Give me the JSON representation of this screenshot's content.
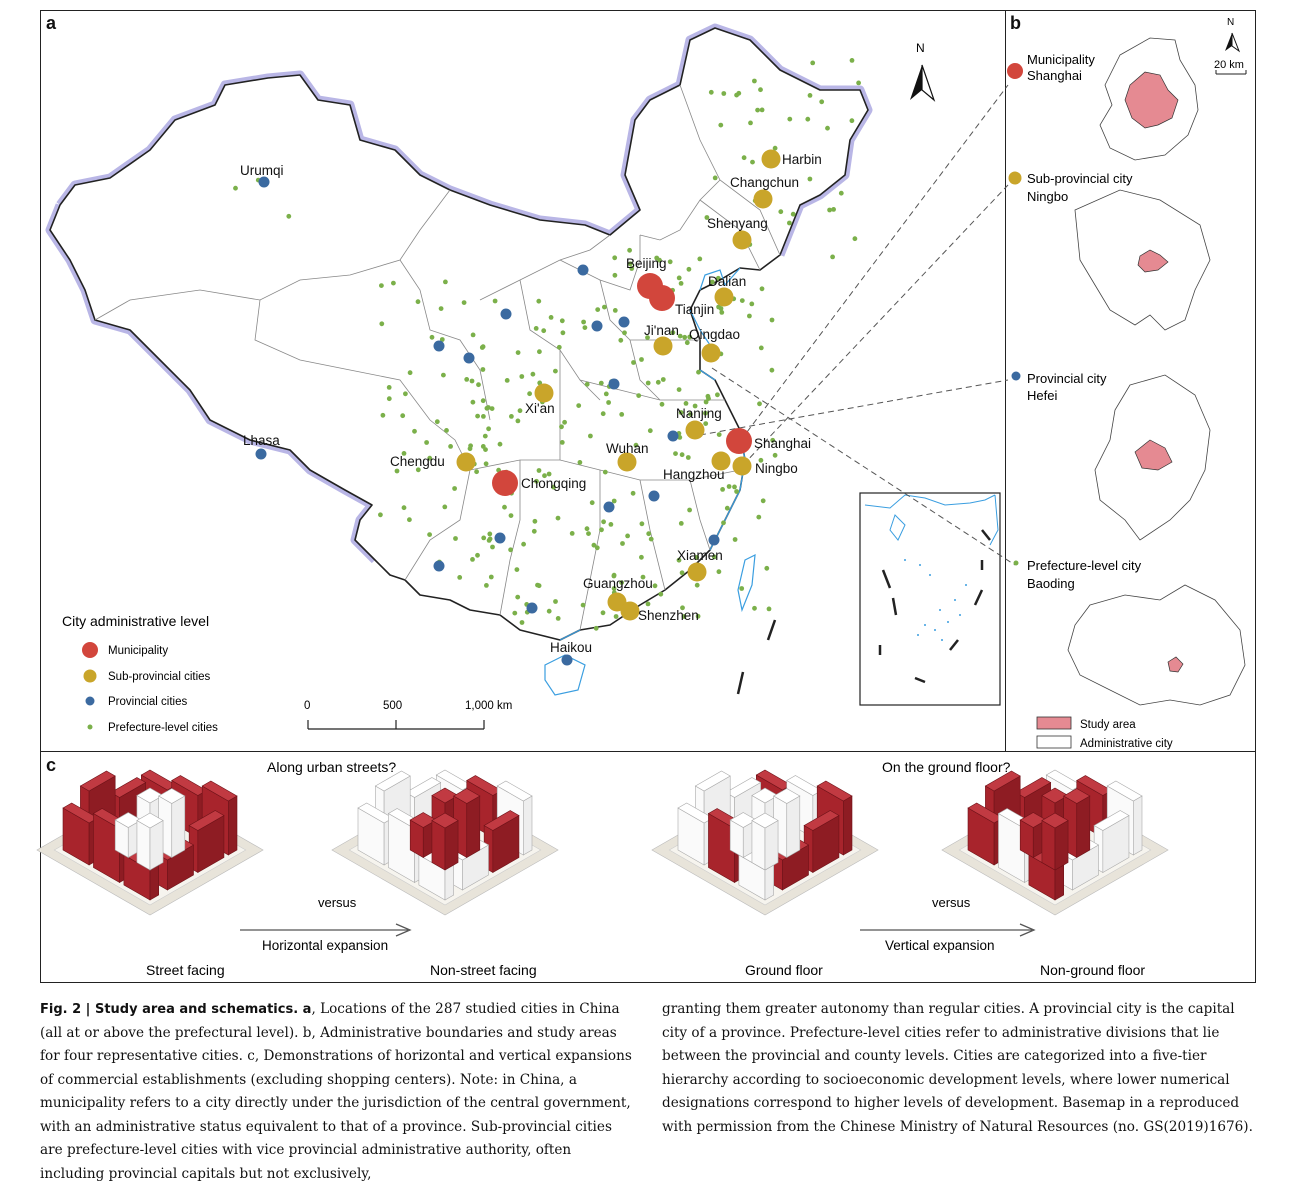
{
  "panels": {
    "a": "a",
    "b": "b",
    "c": "c"
  },
  "map_a": {
    "north": "N",
    "legend_title": "City administrative level",
    "legend_items": [
      {
        "label": "Municipality",
        "color": "#d2463c"
      },
      {
        "label": "Sub-provincial cities",
        "color": "#c9a52a"
      },
      {
        "label": "Provincial cities",
        "color": "#3b6aa0"
      },
      {
        "label": "Prefecture-level cities",
        "color": "#7bb04a"
      }
    ],
    "scale_ticks": [
      "0",
      "500",
      "1,000 km"
    ],
    "cities": [
      {
        "name": "Urumqi",
        "level": "provincial"
      },
      {
        "name": "Lhasa",
        "level": "provincial"
      },
      {
        "name": "Harbin",
        "level": "sub-provincial"
      },
      {
        "name": "Changchun",
        "level": "sub-provincial"
      },
      {
        "name": "Shenyang",
        "level": "sub-provincial"
      },
      {
        "name": "Beijing",
        "level": "municipality"
      },
      {
        "name": "Tianjin",
        "level": "municipality"
      },
      {
        "name": "Dalian",
        "level": "sub-provincial"
      },
      {
        "name": "Ji'nan",
        "level": "sub-provincial"
      },
      {
        "name": "Qingdao",
        "level": "sub-provincial"
      },
      {
        "name": "Xi'an",
        "level": "sub-provincial"
      },
      {
        "name": "Nanjing",
        "level": "sub-provincial"
      },
      {
        "name": "Shanghai",
        "level": "municipality"
      },
      {
        "name": "Chengdu",
        "level": "sub-provincial"
      },
      {
        "name": "Wuhan",
        "level": "sub-provincial"
      },
      {
        "name": "Hangzhou",
        "level": "sub-provincial"
      },
      {
        "name": "Ningbo",
        "level": "sub-provincial"
      },
      {
        "name": "Chongqing",
        "level": "municipality"
      },
      {
        "name": "Xiamen",
        "level": "sub-provincial"
      },
      {
        "name": "Guangzhou",
        "level": "sub-provincial"
      },
      {
        "name": "Shenzhen",
        "level": "sub-provincial"
      },
      {
        "name": "Haikou",
        "level": "provincial"
      }
    ]
  },
  "panel_b": {
    "north": "N",
    "scale": "20 km",
    "examples": [
      {
        "type": "Municipality",
        "city": "Shanghai",
        "color": "#d2463c"
      },
      {
        "type": "Sub-provincial city",
        "city": "Ningbo",
        "color": "#c9a52a"
      },
      {
        "type": "Provincial city",
        "city": "Hefei",
        "color": "#3b6aa0"
      },
      {
        "type": "Prefecture-level city",
        "city": "Baoding",
        "color": "#7bb04a"
      }
    ],
    "legend": [
      "Study area",
      "Administrative city"
    ]
  },
  "panel_c": {
    "left": {
      "question": "Along urban streets?",
      "versus": "versus",
      "arrow": "Horizontal expansion",
      "from": "Street facing",
      "to": "Non-street facing"
    },
    "right": {
      "question": "On the ground floor?",
      "versus": "versus",
      "arrow": "Vertical expansion",
      "from": "Ground floor",
      "to": "Non-ground floor"
    }
  },
  "caption": {
    "lead": "Fig. 2 | Study area and schematics. a",
    "left_text": ", Locations of the 287 studied cities in China (all at or above the prefectural level). b, Administrative boundaries and study areas for four representative cities. c, Demonstrations of horizontal and vertical expansions of commercial establishments (excluding shopping centers). Note: in China, a municipality refers to a city directly under the jurisdiction of the central government, with an administrative status equivalent to that of a province. Sub-provincial cities are prefecture-level cities with vice provincial administrative authority, often including provincial capitals but not exclusively,",
    "right_text": "granting them greater autonomy than regular cities. A provincial city is the capital city of a province. Prefecture-level cities refer to administrative divisions that lie between the provincial and county levels. Cities are categorized into a five-tier hierarchy according to socioeconomic development levels, where lower numerical designations correspond to higher levels of development. Basemap in a reproduced with permission from the Chinese Ministry of Natural Resources (no. GS(2019)1676)."
  },
  "colors": {
    "municipality": "#d2463c",
    "sub_provincial": "#c9a52a",
    "provincial": "#3b6aa0",
    "prefecture": "#7bb04a",
    "study_area": "#e58a92",
    "building_red": "#a8242c"
  }
}
